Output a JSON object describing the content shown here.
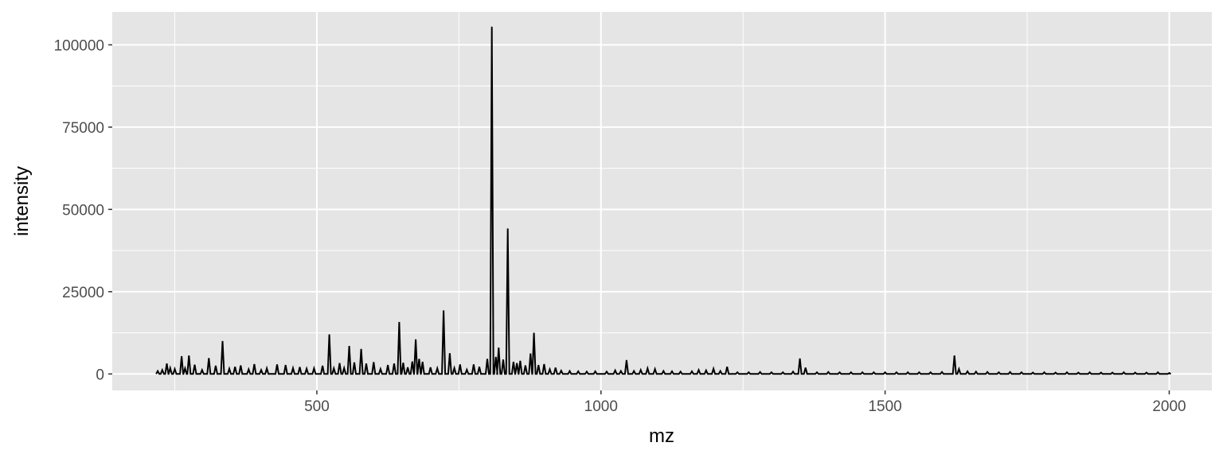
{
  "chart_data": {
    "type": "line",
    "title": "",
    "xlabel": "mz",
    "ylabel": "intensity",
    "xlim": [
      140,
      2075
    ],
    "ylim": [
      -5000,
      110000
    ],
    "x_ticks": [
      500,
      1000,
      1500,
      2000
    ],
    "x_tick_labels": [
      "500",
      "1000",
      "1500",
      "2000"
    ],
    "y_ticks": [
      0,
      25000,
      50000,
      75000,
      100000
    ],
    "y_tick_labels": [
      "0",
      "25000",
      "50000",
      "75000",
      "100000"
    ],
    "grid": true,
    "legend": "none",
    "colors": {
      "panel": "#e5e5e5",
      "grid": "#ffffff",
      "line": "#000000",
      "tick_text": "#4d4d4d"
    },
    "peaks": [
      [
        220,
        900
      ],
      [
        228,
        1200
      ],
      [
        236,
        3200
      ],
      [
        242,
        1800
      ],
      [
        250,
        1500
      ],
      [
        262,
        5400
      ],
      [
        268,
        1700
      ],
      [
        275,
        5600
      ],
      [
        285,
        2800
      ],
      [
        298,
        1200
      ],
      [
        310,
        4800
      ],
      [
        322,
        2500
      ],
      [
        334,
        10000
      ],
      [
        346,
        1600
      ],
      [
        356,
        2200
      ],
      [
        366,
        2600
      ],
      [
        380,
        1400
      ],
      [
        390,
        3000
      ],
      [
        402,
        1200
      ],
      [
        412,
        1700
      ],
      [
        430,
        2900
      ],
      [
        445,
        2700
      ],
      [
        458,
        1800
      ],
      [
        470,
        2100
      ],
      [
        482,
        1600
      ],
      [
        495,
        1700
      ],
      [
        510,
        2500
      ],
      [
        522,
        12000
      ],
      [
        530,
        1700
      ],
      [
        540,
        3300
      ],
      [
        548,
        1800
      ],
      [
        557,
        8500
      ],
      [
        566,
        3500
      ],
      [
        578,
        7600
      ],
      [
        587,
        3200
      ],
      [
        600,
        3600
      ],
      [
        612,
        1500
      ],
      [
        625,
        2700
      ],
      [
        636,
        3200
      ],
      [
        645,
        15800
      ],
      [
        652,
        3400
      ],
      [
        660,
        2000
      ],
      [
        668,
        3800
      ],
      [
        674,
        10500
      ],
      [
        680,
        4600
      ],
      [
        686,
        3700
      ],
      [
        700,
        2000
      ],
      [
        712,
        1700
      ],
      [
        723,
        19300
      ],
      [
        734,
        6300
      ],
      [
        742,
        1800
      ],
      [
        752,
        2900
      ],
      [
        764,
        1300
      ],
      [
        776,
        2900
      ],
      [
        786,
        2200
      ],
      [
        800,
        4600
      ],
      [
        808,
        105500
      ],
      [
        815,
        5200
      ],
      [
        820,
        8000
      ],
      [
        828,
        4400
      ],
      [
        836,
        44200
      ],
      [
        846,
        3700
      ],
      [
        852,
        3300
      ],
      [
        858,
        4000
      ],
      [
        867,
        2600
      ],
      [
        876,
        6200
      ],
      [
        882,
        12500
      ],
      [
        890,
        2700
      ],
      [
        900,
        3000
      ],
      [
        910,
        1400
      ],
      [
        920,
        1900
      ],
      [
        930,
        1000
      ],
      [
        945,
        900
      ],
      [
        960,
        800
      ],
      [
        975,
        700
      ],
      [
        990,
        800
      ],
      [
        1010,
        700
      ],
      [
        1025,
        1100
      ],
      [
        1035,
        900
      ],
      [
        1045,
        4200
      ],
      [
        1058,
        900
      ],
      [
        1070,
        1200
      ],
      [
        1082,
        1700
      ],
      [
        1095,
        1500
      ],
      [
        1110,
        900
      ],
      [
        1125,
        800
      ],
      [
        1140,
        700
      ],
      [
        1160,
        800
      ],
      [
        1172,
        1200
      ],
      [
        1185,
        1100
      ],
      [
        1198,
        1600
      ],
      [
        1210,
        900
      ],
      [
        1222,
        2200
      ],
      [
        1240,
        500
      ],
      [
        1260,
        500
      ],
      [
        1280,
        600
      ],
      [
        1300,
        500
      ],
      [
        1320,
        500
      ],
      [
        1338,
        700
      ],
      [
        1350,
        4700
      ],
      [
        1360,
        1900
      ],
      [
        1380,
        500
      ],
      [
        1400,
        600
      ],
      [
        1420,
        500
      ],
      [
        1440,
        500
      ],
      [
        1460,
        500
      ],
      [
        1480,
        500
      ],
      [
        1500,
        500
      ],
      [
        1520,
        500
      ],
      [
        1540,
        500
      ],
      [
        1560,
        500
      ],
      [
        1580,
        500
      ],
      [
        1600,
        600
      ],
      [
        1622,
        5600
      ],
      [
        1630,
        1500
      ],
      [
        1645,
        800
      ],
      [
        1660,
        700
      ],
      [
        1680,
        600
      ],
      [
        1700,
        500
      ],
      [
        1720,
        600
      ],
      [
        1740,
        500
      ],
      [
        1760,
        400
      ],
      [
        1780,
        500
      ],
      [
        1800,
        400
      ],
      [
        1820,
        500
      ],
      [
        1840,
        400
      ],
      [
        1860,
        500
      ],
      [
        1880,
        400
      ],
      [
        1900,
        400
      ],
      [
        1920,
        500
      ],
      [
        1940,
        400
      ],
      [
        1960,
        400
      ],
      [
        1980,
        500
      ],
      [
        2000,
        300
      ]
    ]
  }
}
